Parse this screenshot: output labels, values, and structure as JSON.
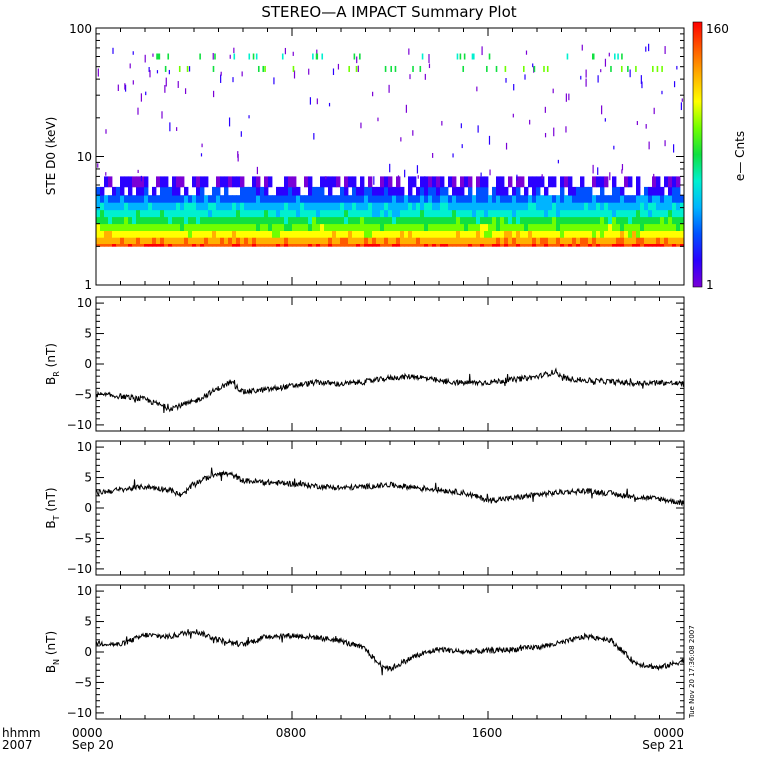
{
  "chart_data": [
    {
      "type": "heatmap",
      "title": "STEREO—A IMPACT Summary Plot",
      "ylabel": "STE D0 (keV)",
      "yscale": "log",
      "ylim": [
        1,
        100
      ],
      "yticks": [
        "1",
        "10",
        "100"
      ],
      "colorbar": {
        "label": "e— Cnts",
        "min": "1",
        "max": "160",
        "scale": "log"
      },
      "colormap": [
        "#7a00d6",
        "#2a00ff",
        "#0050ff",
        "#00b4ff",
        "#00f0d0",
        "#10e040",
        "#70ff00",
        "#ffff00",
        "#ffb000",
        "#ff5a00",
        "#ff0000"
      ],
      "band_rows_kev": [
        {
          "kev": 2.1,
          "level": 0.93
        },
        {
          "kev": 2.35,
          "level": 0.82
        },
        {
          "kev": 2.65,
          "level": 0.7
        },
        {
          "kev": 3.0,
          "level": 0.6
        },
        {
          "kev": 3.4,
          "level": 0.5
        },
        {
          "kev": 3.85,
          "level": 0.4
        },
        {
          "kev": 4.4,
          "level": 0.31
        },
        {
          "kev": 5.0,
          "level": 0.22
        },
        {
          "kev": 5.8,
          "level": 0.14
        },
        {
          "kev": 7.0,
          "level": 0.07
        }
      ]
    },
    {
      "type": "line",
      "ylabel": "B",
      "ylabel_sub": "R",
      "ylabel_unit": "(nT)",
      "ylim": [
        -11,
        11
      ],
      "yticks": [
        "10",
        "5",
        "0",
        "−5",
        "−10"
      ],
      "x_hours": [
        0,
        1,
        2,
        3,
        4,
        5,
        5.5,
        6,
        7,
        8,
        9,
        10,
        11,
        12,
        13,
        14,
        15,
        16,
        17,
        18,
        18.8,
        19,
        20,
        21,
        22,
        23,
        24
      ],
      "values": [
        -5.0,
        -5.3,
        -5.8,
        -7.3,
        -6.2,
        -4.0,
        -3.0,
        -4.6,
        -4.2,
        -3.6,
        -3.0,
        -3.3,
        -2.9,
        -2.3,
        -2.0,
        -2.8,
        -3.1,
        -3.0,
        -2.6,
        -2.1,
        -1.2,
        -2.3,
        -2.7,
        -2.9,
        -3.2,
        -3.0,
        -3.3
      ]
    },
    {
      "type": "line",
      "ylabel": "B",
      "ylabel_sub": "T",
      "ylabel_unit": "(nT)",
      "ylim": [
        -11,
        11
      ],
      "yticks": [
        "10",
        "5",
        "0",
        "−5",
        "−10"
      ],
      "x_hours": [
        0,
        1,
        2,
        3,
        3.5,
        4,
        5,
        5.5,
        6,
        7,
        8,
        9,
        10,
        11,
        12,
        13,
        14,
        15,
        16,
        17,
        18,
        19,
        20,
        21,
        22,
        23,
        24
      ],
      "values": [
        2.5,
        3.0,
        3.5,
        3.0,
        2.0,
        4.0,
        5.8,
        5.5,
        4.5,
        4.2,
        4.0,
        3.6,
        3.3,
        3.5,
        3.8,
        3.4,
        3.0,
        2.5,
        1.3,
        1.6,
        2.2,
        2.6,
        2.8,
        2.4,
        1.8,
        1.5,
        0.8
      ]
    },
    {
      "type": "line",
      "ylabel": "B",
      "ylabel_sub": "N",
      "ylabel_unit": "(nT)",
      "ylim": [
        -11,
        11
      ],
      "yticks": [
        "10",
        "5",
        "0",
        "−5",
        "−10"
      ],
      "x_hours": [
        0,
        1,
        2,
        3,
        4,
        5,
        6,
        7,
        8,
        9,
        10,
        11,
        11.5,
        12,
        13,
        14,
        15,
        16,
        17,
        18,
        19,
        20,
        21,
        22,
        23,
        24
      ],
      "values": [
        1.5,
        1.2,
        2.8,
        2.5,
        3.5,
        2.0,
        1.2,
        2.6,
        2.7,
        2.4,
        1.8,
        0.5,
        -1.8,
        -2.8,
        -0.7,
        0.5,
        0.0,
        0.2,
        0.4,
        0.8,
        1.5,
        2.6,
        2.0,
        -1.8,
        -2.6,
        -1.4
      ]
    }
  ],
  "x_axis": {
    "start": "Sep 20 2007 00:00",
    "end": "Sep 21 2007 00:00",
    "tick_labels": [
      "0000",
      "0800",
      "1600",
      "0000"
    ],
    "date_labels": [
      "Sep 20",
      "",
      "",
      "Sep 21"
    ]
  },
  "corner_labels": {
    "hhmm": "hhmm",
    "year": "2007"
  },
  "timestamp": "Tue Nov 20 17:36:08 2007",
  "line_color": "#000000"
}
